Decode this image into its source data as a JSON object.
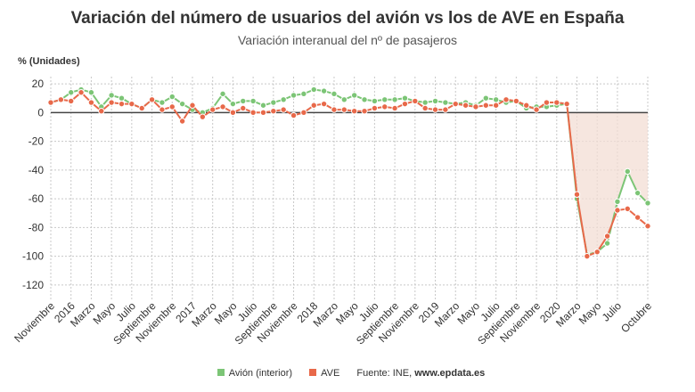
{
  "title": "Variación del número de usuarios del avión vs los de AVE en España",
  "subtitle": "Variación interanual del nº de pasajeros",
  "source_prefix": "Fuente: INE, ",
  "source_site": "www.epdata.es",
  "colors": {
    "avion": "#7cc576",
    "ave": "#e8694a",
    "shade": "#f3ddd4",
    "grid": "#c8c8c8",
    "zero": "#444444"
  },
  "chart_data": {
    "type": "line",
    "ylabel": "% (Unidades)",
    "ylim": [
      -130,
      25
    ],
    "yticks": [
      20,
      0,
      -20,
      -40,
      -60,
      -80,
      -100,
      -120
    ],
    "grid": true,
    "legend_position": "bottom",
    "x_ticks": [
      {
        "i": 0,
        "label": "Noviembre"
      },
      {
        "i": 2,
        "label": "2016"
      },
      {
        "i": 4,
        "label": "Marzo"
      },
      {
        "i": 6,
        "label": "Mayo"
      },
      {
        "i": 8,
        "label": "Julio"
      },
      {
        "i": 10,
        "label": "Septiembre"
      },
      {
        "i": 12,
        "label": "Noviembre"
      },
      {
        "i": 14,
        "label": "2017"
      },
      {
        "i": 16,
        "label": "Marzo"
      },
      {
        "i": 18,
        "label": "Mayo"
      },
      {
        "i": 20,
        "label": "Julio"
      },
      {
        "i": 22,
        "label": "Septiembre"
      },
      {
        "i": 24,
        "label": "Noviembre"
      },
      {
        "i": 26,
        "label": "2018"
      },
      {
        "i": 28,
        "label": "Marzo"
      },
      {
        "i": 30,
        "label": "Mayo"
      },
      {
        "i": 32,
        "label": "Julio"
      },
      {
        "i": 34,
        "label": "Septiembre"
      },
      {
        "i": 36,
        "label": "Noviembre"
      },
      {
        "i": 38,
        "label": "2019"
      },
      {
        "i": 40,
        "label": "Marzo"
      },
      {
        "i": 42,
        "label": "Mayo"
      },
      {
        "i": 44,
        "label": "Julio"
      },
      {
        "i": 46,
        "label": "Septiembre"
      },
      {
        "i": 48,
        "label": "Noviembre"
      },
      {
        "i": 50,
        "label": "2020"
      },
      {
        "i": 52,
        "label": "Marzo"
      },
      {
        "i": 54,
        "label": "Mayo"
      },
      {
        "i": 56,
        "label": "Julio"
      },
      {
        "i": 59,
        "label": "Octubre"
      }
    ],
    "series": [
      {
        "name": "Avión (interior)",
        "values": [
          7,
          9,
          14,
          16,
          14,
          4,
          12,
          10,
          6,
          3,
          9,
          7,
          11,
          6,
          2,
          0,
          3,
          13,
          6,
          8,
          8,
          5,
          7,
          9,
          12,
          13,
          16,
          15,
          13,
          9,
          12,
          9,
          8,
          9,
          9,
          10,
          8,
          7,
          8,
          7,
          6,
          7,
          5,
          10,
          9,
          7,
          8,
          3,
          4,
          4,
          5,
          6,
          -60,
          -99,
          -97,
          -91,
          -62,
          -41,
          -56,
          -63
        ]
      },
      {
        "name": "AVE",
        "values": [
          7,
          9,
          8,
          14,
          7,
          1,
          7,
          6,
          6,
          3,
          9,
          2,
          4,
          -6,
          5,
          -3,
          2,
          4,
          0,
          3,
          0,
          0,
          1,
          2,
          -2,
          0,
          5,
          6,
          2,
          2,
          1,
          1,
          3,
          4,
          3,
          6,
          8,
          3,
          2,
          2,
          6,
          5,
          4,
          5,
          5,
          9,
          8,
          5,
          2,
          7,
          7,
          6,
          -57,
          -100,
          -97,
          -86,
          -68,
          -67,
          -73,
          -79
        ]
      }
    ]
  },
  "legend": {
    "avion": "Avión (interior)",
    "ave": "AVE"
  }
}
